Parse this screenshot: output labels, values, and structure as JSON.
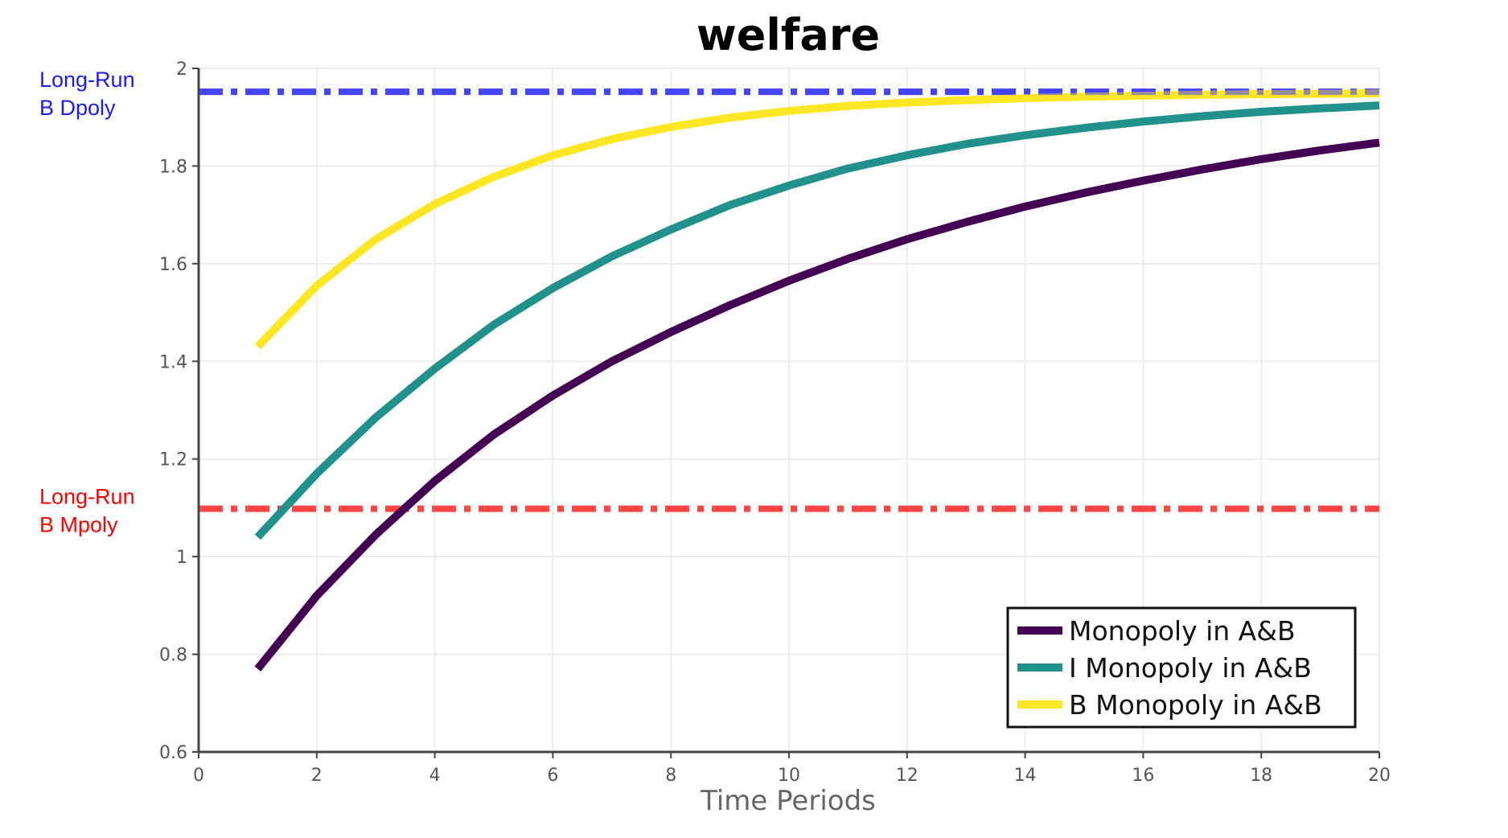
{
  "chart_data": {
    "type": "line",
    "title": "welfare",
    "xlabel": "Time Periods",
    "ylabel": "",
    "xlim": [
      0,
      20
    ],
    "ylim": [
      0.6,
      2.0
    ],
    "grid": true,
    "legend_position": "bottom-right",
    "x_ticks": [
      "0",
      "2",
      "4",
      "6",
      "8",
      "10",
      "12",
      "14",
      "16",
      "18",
      "20"
    ],
    "y_ticks": [
      "0.6",
      "0.8",
      "1",
      "1.2",
      "1.4",
      "1.6",
      "1.8",
      "2"
    ],
    "x": [
      1,
      2,
      3,
      4,
      5,
      6,
      7,
      8,
      9,
      10,
      11,
      12,
      13,
      14,
      15,
      16,
      17,
      18,
      19,
      20
    ],
    "series": [
      {
        "name": "Monopoly in A&B",
        "color": "#440154",
        "values": [
          0.77,
          0.92,
          1.045,
          1.155,
          1.25,
          1.33,
          1.4,
          1.46,
          1.515,
          1.565,
          1.61,
          1.65,
          1.685,
          1.717,
          1.745,
          1.77,
          1.793,
          1.814,
          1.832,
          1.848
        ]
      },
      {
        "name": "I Monopoly in A&B",
        "color": "#21918c",
        "values": [
          1.04,
          1.17,
          1.285,
          1.385,
          1.475,
          1.55,
          1.615,
          1.67,
          1.72,
          1.76,
          1.795,
          1.822,
          1.845,
          1.863,
          1.878,
          1.891,
          1.902,
          1.911,
          1.918,
          1.924
        ]
      },
      {
        "name": "B Monopoly in A&B",
        "color": "#fde725",
        "values": [
          1.43,
          1.555,
          1.65,
          1.722,
          1.778,
          1.822,
          1.855,
          1.88,
          1.899,
          1.913,
          1.923,
          1.93,
          1.935,
          1.939,
          1.942,
          1.944,
          1.946,
          1.947,
          1.948,
          1.949
        ]
      }
    ],
    "reference_lines": [
      {
        "label_line1": "Long-Run",
        "label_line2": "B Dpoly",
        "value": 1.952,
        "color": "#4444ff",
        "label_color": "#1a1aff"
      },
      {
        "label_line1": "Long-Run",
        "label_line2": "B Mpoly",
        "value": 1.098,
        "color": "#ff4444",
        "label_color": "#ff0000"
      }
    ]
  }
}
